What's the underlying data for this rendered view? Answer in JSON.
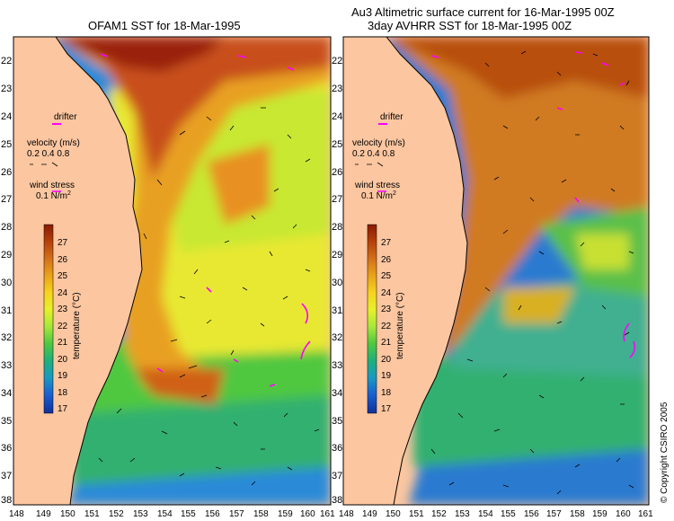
{
  "left_panel": {
    "title": "OFAM1 SST for 18-Mar-1995"
  },
  "right_panel": {
    "title_line1": "Au3 Altimetric surface current for 16-Mar-1995 00Z",
    "title_line2": "3day AVHRR SST for 18-Mar-1995 00Z"
  },
  "lat_labels": [
    "22",
    "23",
    "24",
    "25",
    "26",
    "27",
    "28",
    "29",
    "30",
    "31",
    "32",
    "33",
    "34",
    "35",
    "36",
    "37",
    "38"
  ],
  "lon_labels": [
    "148",
    "149",
    "150",
    "151",
    "152",
    "153",
    "154",
    "155",
    "156",
    "157",
    "158",
    "159",
    "160",
    "161"
  ],
  "legend": {
    "drifter": "drifter",
    "velocity_label": "velocity (m/s)",
    "velocity_scale": "0.2 0.4 0.8",
    "wind_stress_label": "wind stress",
    "wind_stress_value": "0.1 N/m",
    "wind_stress_exp": "2"
  },
  "colorbar": {
    "label": "temperature (°C)",
    "ticks": [
      "27",
      "26",
      "25",
      "24",
      "23",
      "22",
      "21",
      "20",
      "19",
      "18",
      "17"
    ],
    "colors": [
      "#8a1a00",
      "#b5400a",
      "#d4701a",
      "#e9a21a",
      "#f7d21f",
      "#e8f02a",
      "#a8e83a",
      "#50c840",
      "#20b07a",
      "#1a9ac0",
      "#1a60d0",
      "#10309a"
    ]
  },
  "copyright": "© Copyright CSIRO 2005",
  "colors": {
    "land": "#fbc6a0",
    "background": "#ffffff",
    "frame": "#000000",
    "drifter": "#ff00ff"
  }
}
